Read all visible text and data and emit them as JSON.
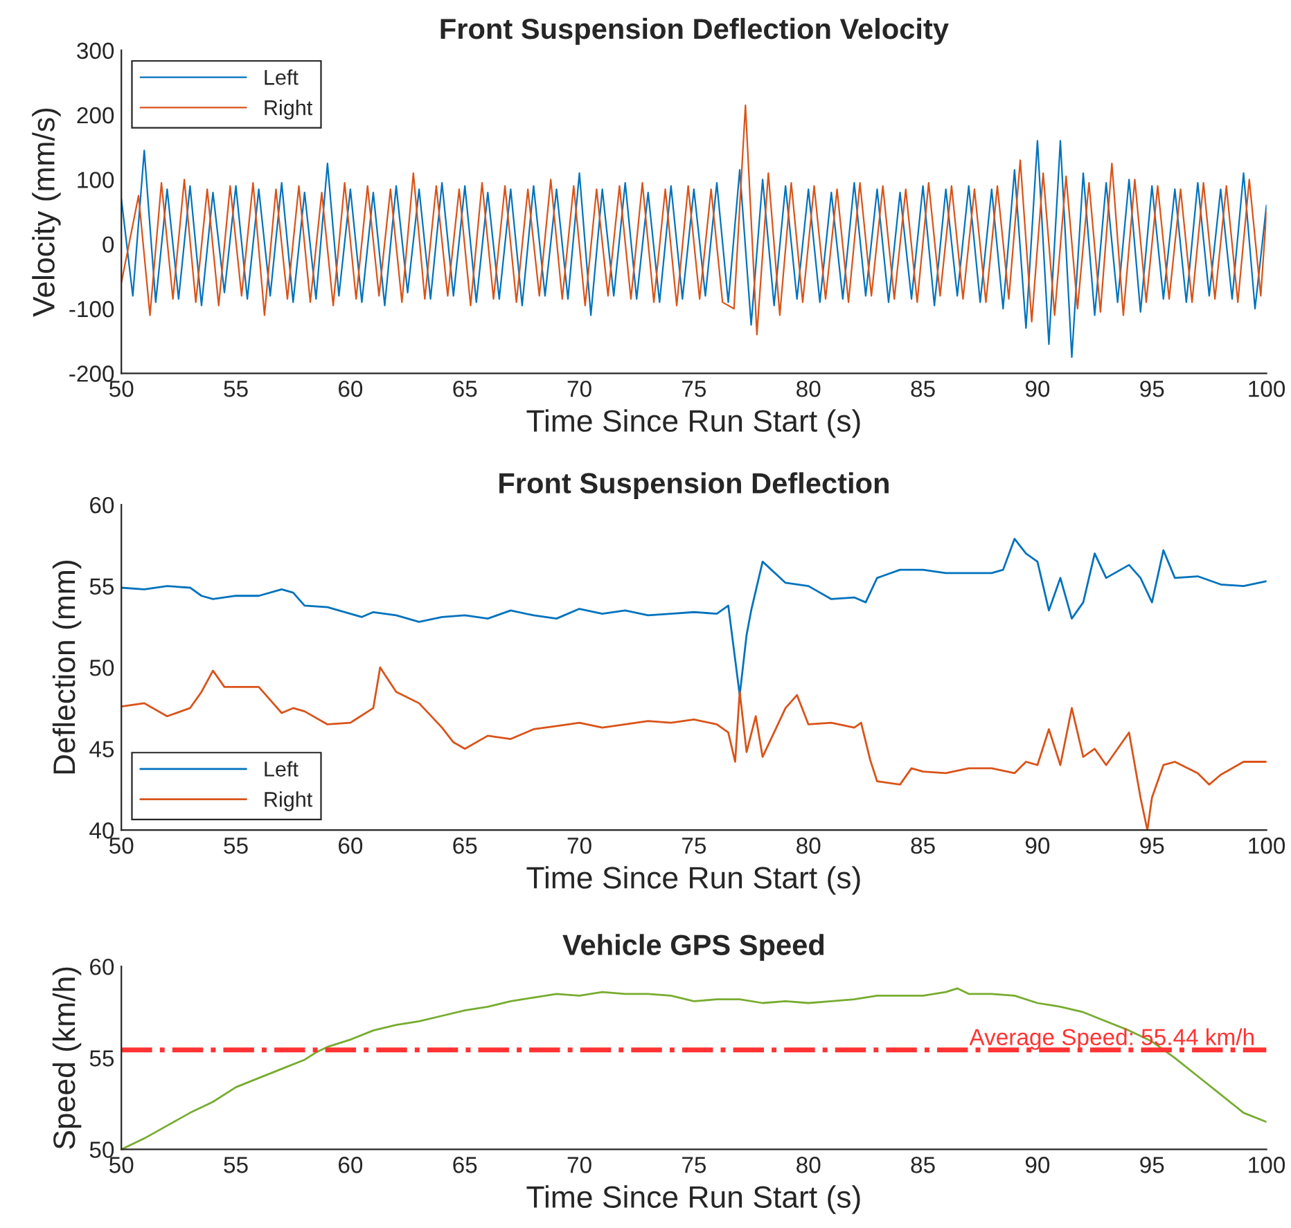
{
  "chart_data": [
    {
      "type": "line",
      "title": "Front Suspension Deflection Velocity",
      "xlabel": "Time Since Run Start (s)",
      "ylabel": "Velocity (mm/s)",
      "xlim": [
        50,
        100
      ],
      "xticks": [
        50,
        55,
        60,
        65,
        70,
        75,
        80,
        85,
        90,
        95,
        100
      ],
      "ylim": [
        -200,
        300
      ],
      "yticks": [
        -200,
        -100,
        0,
        100,
        200,
        300
      ],
      "grid": false,
      "legend": "top left",
      "x": [
        50,
        50.5,
        51,
        51.5,
        52,
        52.5,
        53,
        53.5,
        54,
        54.5,
        55,
        55.5,
        56,
        56.5,
        57,
        57.5,
        58,
        58.5,
        59,
        59.5,
        60,
        60.5,
        61,
        61.5,
        62,
        62.5,
        63,
        63.5,
        64,
        64.5,
        65,
        65.5,
        66,
        66.5,
        67,
        67.5,
        68,
        68.5,
        69,
        69.5,
        70,
        70.5,
        71,
        71.5,
        72,
        72.5,
        73,
        73.5,
        74,
        74.5,
        75,
        75.5,
        76,
        76.5,
        77,
        77.5,
        78,
        78.5,
        79,
        79.5,
        80,
        80.5,
        81,
        81.5,
        82,
        82.5,
        83,
        83.5,
        84,
        84.5,
        85,
        85.5,
        86,
        86.5,
        87,
        87.5,
        88,
        88.5,
        89,
        89.5,
        90,
        90.5,
        91,
        91.5,
        92,
        92.5,
        93,
        93.5,
        94,
        94.5,
        95,
        95.5,
        96,
        96.5,
        97,
        97.5,
        98,
        98.5,
        99,
        99.5,
        100
      ],
      "series": [
        {
          "name": "Left",
          "color": "#0072bd",
          "values": [
            70,
            -80,
            145,
            -90,
            85,
            -85,
            90,
            -95,
            80,
            -75,
            90,
            -85,
            85,
            -80,
            95,
            -90,
            80,
            -85,
            125,
            -80,
            85,
            -90,
            80,
            -95,
            90,
            -75,
            85,
            -85,
            95,
            -80,
            90,
            -90,
            80,
            -85,
            85,
            -95,
            90,
            -80,
            85,
            -85,
            110,
            -110,
            85,
            -80,
            95,
            -85,
            80,
            -90,
            90,
            -85,
            85,
            -80,
            95,
            -90,
            115,
            -125,
            100,
            -95,
            90,
            -85,
            85,
            -90,
            80,
            -85,
            95,
            -80,
            85,
            -90,
            80,
            -85,
            90,
            -95,
            85,
            -80,
            90,
            -90,
            85,
            -100,
            115,
            -130,
            160,
            -155,
            160,
            -175,
            110,
            -110,
            95,
            -90,
            100,
            -105,
            90,
            -85,
            85,
            -90,
            95,
            -80,
            85,
            -85,
            110,
            -100,
            60
          ]
        },
        {
          "name": "Right",
          "color": "#d95319",
          "x": [
            50,
            50.75,
            51.25,
            51.75,
            52.25,
            52.75,
            53.25,
            53.75,
            54.25,
            54.75,
            55.25,
            55.75,
            56.25,
            56.75,
            57.25,
            57.75,
            58.25,
            58.75,
            59.25,
            59.75,
            60.25,
            60.75,
            61.25,
            61.75,
            62.25,
            62.75,
            63.25,
            63.75,
            64.25,
            64.75,
            65.25,
            65.75,
            66.25,
            66.75,
            67.25,
            67.75,
            68.25,
            68.75,
            69.25,
            69.75,
            70.25,
            70.75,
            71.25,
            71.75,
            72.25,
            72.75,
            73.25,
            73.75,
            74.25,
            74.75,
            75.25,
            75.75,
            76.25,
            76.75,
            77.25,
            77.75,
            78.25,
            78.75,
            79.25,
            79.75,
            80.25,
            80.75,
            81.25,
            81.75,
            82.25,
            82.75,
            83.25,
            83.75,
            84.25,
            84.75,
            85.25,
            85.75,
            86.25,
            86.75,
            87.25,
            87.75,
            88.25,
            88.75,
            89.25,
            89.75,
            90.25,
            90.75,
            91.25,
            91.75,
            92.25,
            92.75,
            93.25,
            93.75,
            94.25,
            94.75,
            95.25,
            95.75,
            96.25,
            96.75,
            97.25,
            97.75,
            98.25,
            98.75,
            99.25,
            99.75,
            100
          ],
          "values": [
            -60,
            75,
            -110,
            95,
            -85,
            100,
            -90,
            85,
            -95,
            90,
            -80,
            95,
            -110,
            85,
            -85,
            90,
            -90,
            80,
            -95,
            95,
            -85,
            90,
            -80,
            85,
            -90,
            110,
            -85,
            90,
            -80,
            85,
            -95,
            95,
            -85,
            90,
            -90,
            85,
            -80,
            100,
            -85,
            90,
            -95,
            85,
            -80,
            90,
            -85,
            95,
            -90,
            85,
            -95,
            90,
            -85,
            85,
            -90,
            -100,
            215,
            -140,
            110,
            -110,
            95,
            -90,
            90,
            -85,
            85,
            -90,
            95,
            -80,
            90,
            -85,
            85,
            -90,
            95,
            -80,
            90,
            -85,
            85,
            -90,
            90,
            -85,
            130,
            -120,
            110,
            -110,
            105,
            -100,
            95,
            -105,
            125,
            -110,
            100,
            -90,
            90,
            -85,
            85,
            -90,
            95,
            -85,
            90,
            -90,
            100,
            -80,
            50
          ]
        }
      ]
    },
    {
      "type": "line",
      "title": "Front Suspension Deflection",
      "xlabel": "Time Since Run Start (s)",
      "ylabel": "Deflection (mm)",
      "xlim": [
        50,
        100
      ],
      "xticks": [
        50,
        55,
        60,
        65,
        70,
        75,
        80,
        85,
        90,
        95,
        100
      ],
      "ylim": [
        40,
        60
      ],
      "yticks": [
        40,
        45,
        50,
        55,
        60
      ],
      "grid": false,
      "legend": "bottom left",
      "series": [
        {
          "name": "Left",
          "color": "#0072bd",
          "x": [
            50,
            51,
            52,
            53,
            53.5,
            54,
            55,
            56,
            57,
            57.5,
            58,
            59,
            60,
            60.5,
            61,
            62,
            63,
            64,
            65,
            66,
            67,
            68,
            69,
            70,
            71,
            72,
            73,
            74,
            75,
            76,
            76.5,
            77,
            77.3,
            77.5,
            78,
            79,
            80,
            81,
            82,
            82.5,
            83,
            84,
            85,
            86,
            87,
            88,
            88.5,
            89,
            89.5,
            90,
            90.5,
            91,
            91.5,
            92,
            92.5,
            93,
            94,
            94.5,
            95,
            95.5,
            96,
            97,
            98,
            99,
            100
          ],
          "values": [
            54.9,
            54.8,
            55.0,
            54.9,
            54.4,
            54.2,
            54.4,
            54.4,
            54.8,
            54.6,
            53.8,
            53.7,
            53.3,
            53.1,
            53.4,
            53.2,
            52.8,
            53.1,
            53.2,
            53.0,
            53.5,
            53.2,
            53.0,
            53.6,
            53.3,
            53.5,
            53.2,
            53.3,
            53.4,
            53.3,
            53.8,
            48.3,
            52.0,
            53.5,
            56.5,
            55.2,
            55.0,
            54.2,
            54.3,
            54.0,
            55.5,
            56.0,
            56.0,
            55.8,
            55.8,
            55.8,
            56.0,
            57.9,
            57.0,
            56.5,
            53.5,
            55.5,
            53.0,
            54.0,
            57.0,
            55.5,
            56.3,
            55.5,
            54.0,
            57.2,
            55.5,
            55.6,
            55.1,
            55.0,
            55.3
          ]
        },
        {
          "name": "Right",
          "color": "#d95319",
          "x": [
            50,
            51,
            52,
            53,
            53.5,
            54,
            54.5,
            55,
            56,
            57,
            57.5,
            58,
            59,
            60,
            61,
            61.3,
            62,
            63,
            64,
            64.5,
            65,
            66,
            67,
            68,
            69,
            70,
            71,
            72,
            73,
            74,
            75,
            76,
            76.5,
            76.8,
            77,
            77.3,
            77.7,
            78,
            79,
            79.5,
            80,
            81,
            82,
            82.3,
            82.7,
            83,
            84,
            84.5,
            85,
            86,
            87,
            88,
            89,
            89.5,
            90,
            90.5,
            91,
            91.5,
            92,
            92.5,
            93,
            94,
            94.5,
            94.8,
            95,
            95.5,
            96,
            97,
            97.5,
            98,
            99,
            100
          ],
          "values": [
            47.6,
            47.8,
            47.0,
            47.5,
            48.5,
            49.8,
            48.8,
            48.8,
            48.8,
            47.2,
            47.5,
            47.3,
            46.5,
            46.6,
            47.5,
            50.0,
            48.5,
            47.8,
            46.3,
            45.4,
            45.0,
            45.8,
            45.6,
            46.2,
            46.4,
            46.6,
            46.3,
            46.5,
            46.7,
            46.6,
            46.8,
            46.5,
            46.0,
            44.2,
            48.5,
            44.8,
            47.0,
            44.5,
            47.5,
            48.3,
            46.5,
            46.6,
            46.3,
            46.6,
            44.3,
            43.0,
            42.8,
            43.8,
            43.6,
            43.5,
            43.8,
            43.8,
            43.5,
            44.2,
            44.0,
            46.2,
            44.0,
            47.5,
            44.5,
            45.0,
            44.0,
            46.0,
            42.0,
            40.0,
            42.0,
            44.0,
            44.2,
            43.5,
            42.8,
            43.4,
            44.2,
            44.2
          ]
        }
      ]
    },
    {
      "type": "line",
      "title": "Vehicle GPS Speed",
      "xlabel": "Time Since Run Start (s)",
      "ylabel": "Speed (km/h)",
      "xlim": [
        50,
        100
      ],
      "xticks": [
        50,
        55,
        60,
        65,
        70,
        75,
        80,
        85,
        90,
        95,
        100
      ],
      "ylim": [
        50,
        60
      ],
      "yticks": [
        50,
        55,
        60
      ],
      "grid": false,
      "x": [
        50,
        51,
        52,
        53,
        54,
        55,
        56,
        57,
        58,
        58.5,
        59,
        60,
        61,
        62,
        63,
        64,
        65,
        66,
        67,
        68,
        69,
        70,
        71,
        72,
        73,
        74,
        75,
        76,
        77,
        78,
        79,
        80,
        81,
        82,
        83,
        84,
        85,
        86,
        86.5,
        87,
        88,
        89,
        90,
        91,
        92,
        93,
        94,
        95,
        96,
        97,
        98,
        99,
        100
      ],
      "series": [
        {
          "color": "#77ac30",
          "values": [
            50.0,
            50.6,
            51.3,
            52.0,
            52.6,
            53.4,
            53.9,
            54.4,
            54.9,
            55.3,
            55.6,
            56.0,
            56.5,
            56.8,
            57.0,
            57.3,
            57.6,
            57.8,
            58.1,
            58.3,
            58.5,
            58.4,
            58.6,
            58.5,
            58.5,
            58.4,
            58.1,
            58.2,
            58.2,
            58.0,
            58.1,
            58.0,
            58.1,
            58.2,
            58.4,
            58.4,
            58.4,
            58.6,
            58.8,
            58.5,
            58.5,
            58.4,
            58.0,
            57.8,
            57.5,
            57.0,
            56.5,
            55.9,
            55.0,
            54.0,
            53.0,
            52.0,
            51.5
          ]
        }
      ],
      "ref_lines": [
        {
          "axis": "y",
          "value": 55.44,
          "label": "Average Speed: 55.44 km/h",
          "color": "#ff3333",
          "line_style": "dashdot"
        }
      ]
    }
  ]
}
